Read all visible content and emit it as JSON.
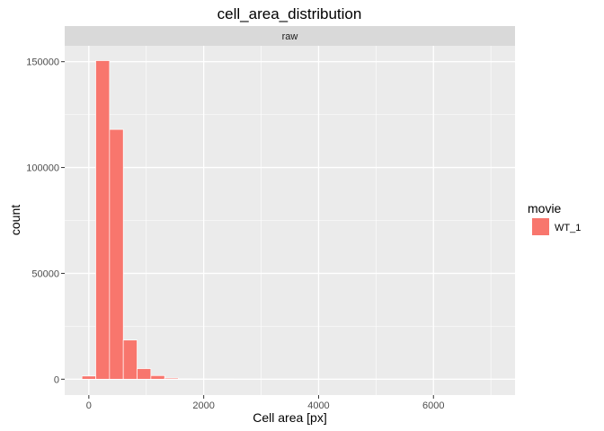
{
  "chart_data": {
    "type": "bar",
    "title": "cell_area_distribution",
    "facet_label": "raw",
    "xlabel": "Cell area [px]",
    "ylabel": "count",
    "xlim": [
      -420,
      7420
    ],
    "ylim": [
      -7500,
      157500
    ],
    "x_ticks": [
      0,
      2000,
      4000,
      6000
    ],
    "x_tick_labels": [
      "0",
      "2000",
      "4000",
      "6000"
    ],
    "x_minor_ticks": [
      1000,
      3000,
      5000,
      7000
    ],
    "y_ticks": [
      0,
      50000,
      100000,
      150000
    ],
    "y_tick_labels": [
      "0",
      "50000",
      "100000",
      "150000"
    ],
    "y_minor_ticks": [
      25000,
      75000,
      125000
    ],
    "bin_width": 240,
    "bin_starts": [
      -120,
      120,
      360,
      600,
      840,
      1080,
      1320,
      1560,
      1800,
      2040,
      2280,
      2520,
      2760,
      3000,
      3240,
      3480,
      3720,
      3960,
      4200,
      4440,
      4680,
      4920,
      5160,
      5400,
      5640,
      5880,
      6120,
      6360,
      6600,
      6840
    ],
    "series": [
      {
        "name": "WT_1",
        "color": "#F8766D",
        "values": [
          1500,
          150500,
          118000,
          18500,
          5000,
          1700,
          500,
          200,
          100,
          50,
          30,
          20,
          10,
          10,
          5,
          5,
          5,
          3,
          3,
          2,
          2,
          2,
          2,
          1,
          1,
          1,
          1,
          1,
          1,
          1
        ]
      }
    ],
    "grid": true,
    "panel_background": "#EBEBEB",
    "grid_color": "#FFFFFF",
    "strip_background": "#D9D9D9",
    "legend": {
      "title": "movie",
      "placement": "right",
      "items": [
        "WT_1"
      ]
    }
  }
}
